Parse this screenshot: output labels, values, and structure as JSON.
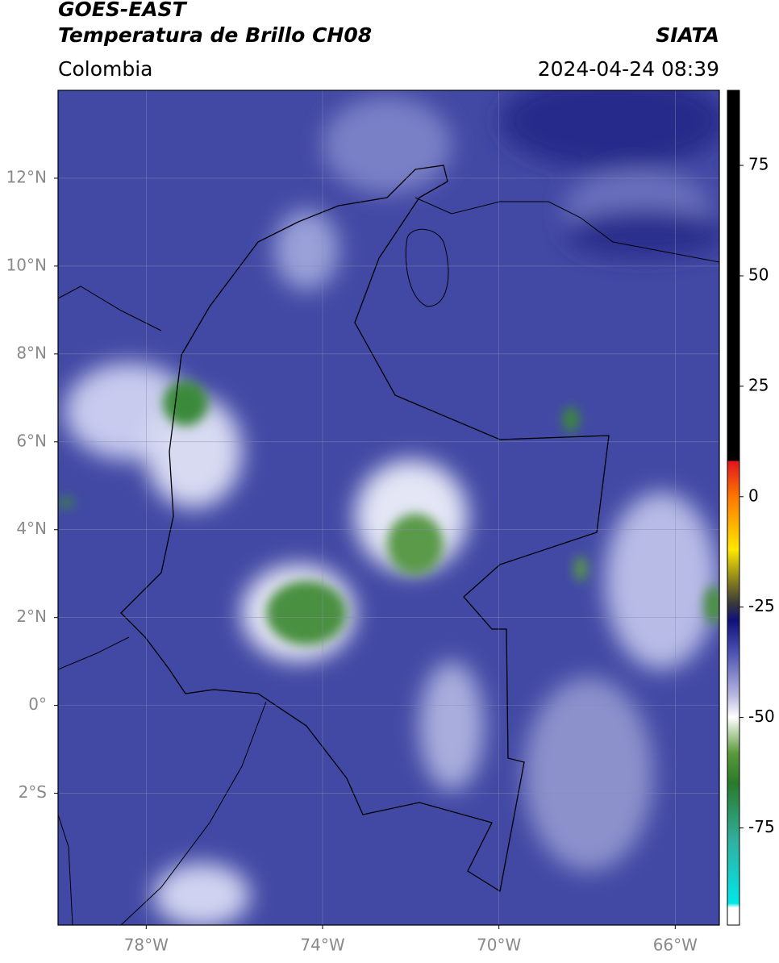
{
  "header": {
    "title": "GOES-EAST",
    "subtitle": "Temperatura de Brillo CH08",
    "source": "SIATA",
    "region": "Colombia",
    "datetime": "2024-04-24 08:39"
  },
  "map": {
    "xlim": [
      -80,
      -65
    ],
    "ylim": [
      -5,
      14
    ],
    "grid": true,
    "xticks": [
      {
        "value": -78,
        "label": "78°W"
      },
      {
        "value": -74,
        "label": "74°W"
      },
      {
        "value": -70,
        "label": "70°W"
      },
      {
        "value": -66,
        "label": "66°W"
      }
    ],
    "yticks": [
      {
        "value": 12,
        "label": "12°N"
      },
      {
        "value": 10,
        "label": "10°N"
      },
      {
        "value": 8,
        "label": "8°N"
      },
      {
        "value": 6,
        "label": "6°N"
      },
      {
        "value": 4,
        "label": "4°N"
      },
      {
        "value": 2,
        "label": "2°N"
      },
      {
        "value": 0,
        "label": "0°"
      },
      {
        "value": -2,
        "label": "2°S"
      }
    ]
  },
  "colorbar": {
    "lim": [
      -97,
      92
    ],
    "ticks": [
      75,
      50,
      25,
      0,
      -25,
      -50,
      -75
    ]
  }
}
